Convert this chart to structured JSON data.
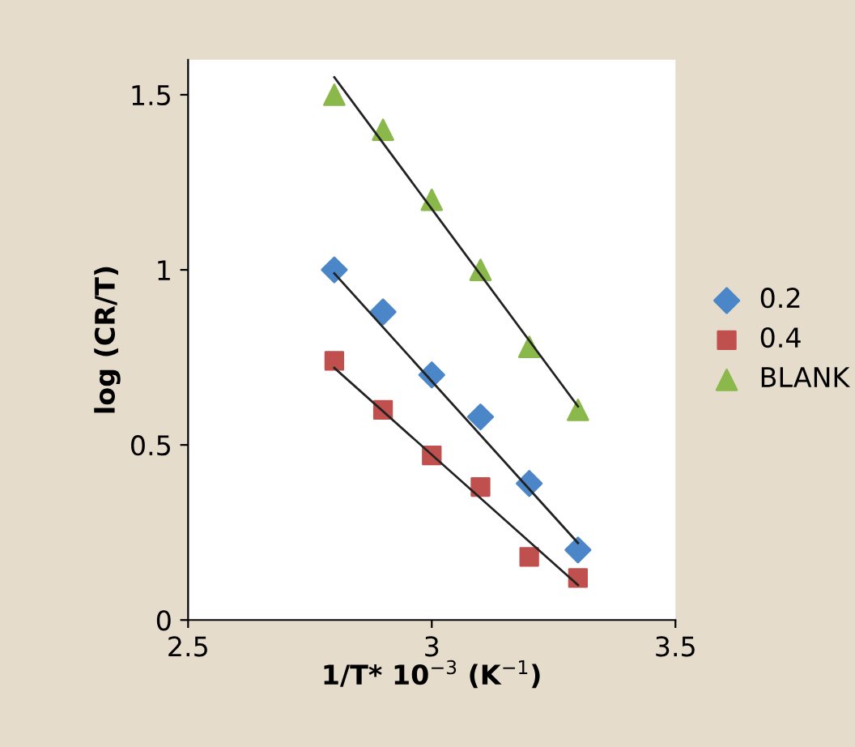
{
  "chart_data": {
    "type": "scatter",
    "xlabel": "1/T* 10$^{−3}$ (K$^{−1}$)",
    "ylabel": "log (CR/T)",
    "xlim": [
      2.5,
      3.5
    ],
    "xticks": [
      2.5,
      3,
      3.5
    ],
    "ylim": [
      0,
      1.6
    ],
    "yticks": [
      0,
      0.5,
      1,
      1.5
    ],
    "grid": false,
    "legend": "right",
    "series": [
      {
        "name": "0.2",
        "color": "#4a86c8",
        "marker": "diamond",
        "x": [
          2.8,
          2.9,
          3.0,
          3.1,
          3.2,
          3.3
        ],
        "values": [
          1.0,
          0.88,
          0.7,
          0.58,
          0.39,
          0.2
        ]
      },
      {
        "name": "0.4",
        "color": "#c0504d",
        "marker": "square",
        "x": [
          2.8,
          2.9,
          3.0,
          3.1,
          3.2,
          3.3
        ],
        "values": [
          0.74,
          0.6,
          0.47,
          0.38,
          0.18,
          0.12
        ]
      },
      {
        "name": "BLANK",
        "color": "#8ab84a",
        "marker": "triangle",
        "x": [
          2.8,
          2.9,
          3.0,
          3.1,
          3.2,
          3.3
        ],
        "values": [
          1.5,
          1.4,
          1.2,
          1.0,
          0.78,
          0.6
        ]
      },
      {
        "type": "line",
        "color": "#222222",
        "x": [
          2.8,
          3.3
        ],
        "values": [
          0.99,
          0.22
        ]
      },
      {
        "type": "line",
        "color": "#222222",
        "x": [
          2.8,
          3.3
        ],
        "values": [
          0.72,
          0.1
        ]
      },
      {
        "type": "line",
        "color": "#222222",
        "x": [
          2.8,
          3.3
        ],
        "values": [
          1.55,
          0.61
        ]
      }
    ]
  }
}
